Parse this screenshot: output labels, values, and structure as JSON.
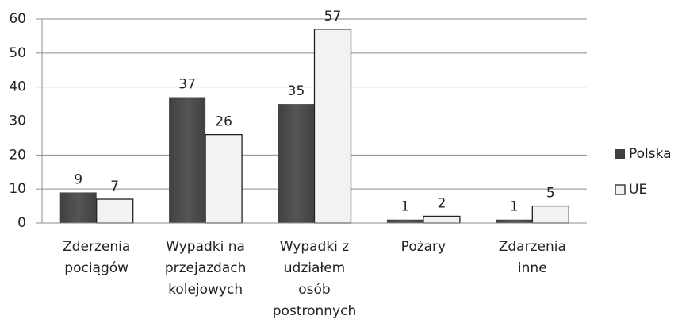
{
  "chart_data": {
    "type": "bar",
    "categories": [
      "Zderzenia pociągów",
      "Wypadki na przejazdach kolejowych",
      "Wypadki z udziałem osób postronnych",
      "Pożary",
      "Zdarzenia inne"
    ],
    "series": [
      {
        "name": "Polska",
        "color": "#404040",
        "values": [
          9,
          37,
          35,
          1,
          1
        ]
      },
      {
        "name": "UE",
        "color": "#f2f2f2",
        "values": [
          7,
          26,
          57,
          2,
          5
        ]
      }
    ],
    "ylim": [
      0,
      60
    ],
    "yticks": [
      0,
      10,
      20,
      30,
      40,
      50,
      60
    ],
    "grid": true,
    "legend": "right"
  }
}
